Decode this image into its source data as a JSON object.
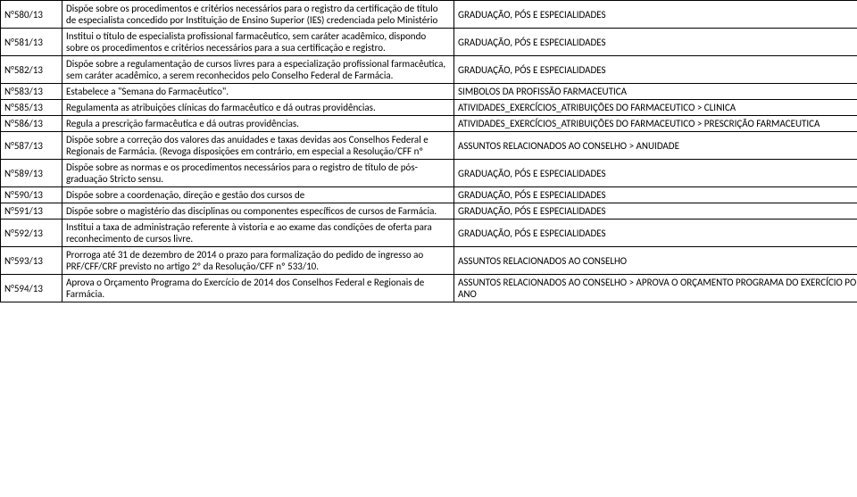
{
  "rows": [
    {
      "code": "N°580/13",
      "desc": "Dispõe sobre os procedimentos e critérios necessários para o registro da certificação de título de especialista concedido por Instituição de Ensino Superior (IES) credenciada pelo Ministério",
      "cat": "GRADUAÇÃO, PÓS E ESPECIALIDADES"
    },
    {
      "code": "N°581/13",
      "desc": "Institui o título de especialista profissional farmacêutico, sem caráter acadêmico, dispondo sobre os procedimentos e critérios necessários para a sua certificação e registro.",
      "cat": "GRADUAÇÃO, PÓS E ESPECIALIDADES"
    },
    {
      "code": "N°582/13",
      "desc": "Dispõe sobre a regulamentação de cursos livres para a especialização profissional farmacêutica, sem caráter acadêmico, a serem reconhecidos pelo Conselho Federal de Farmácia.",
      "cat": "GRADUAÇÃO, PÓS E ESPECIALIDADES"
    },
    {
      "code": "N°583/13",
      "desc": "Estabelece a \"Semana do Farmacêutico\".",
      "cat": "SIMBOLOS DA PROFISSÃO FARMACEUTICA"
    },
    {
      "code": "N°585/13",
      "desc": "Regulamenta as atribuições clínicas do farmacêutico e dá outras providências.",
      "cat": "ATIVIDADES_EXERCÍCIOS_ATRIBUIÇÕES DO FARMACEUTICO > CLINICA"
    },
    {
      "code": "N°586/13",
      "desc": "Regula a prescrição farmacêutica e dá outras providências.",
      "cat": "ATIVIDADES_EXERCÍCIOS_ATRIBUIÇÕES DO FARMACEUTICO > PRESCRIÇÃO FARMACEUTICA"
    },
    {
      "code": "N°587/13",
      "desc": "Dispõe sobre a correção dos valores das anuidades e taxas devidas aos Conselhos Federal e Regionais de Farmácia. (Revoga disposições em contrário, em especial a Resolução/CFF nº",
      "cat": "ASSUNTOS RELACIONADOS AO CONSELHO > ANUIDADE"
    },
    {
      "code": "N°589/13",
      "desc": "Dispõe sobre as normas e os procedimentos necessários para o registro de título de pós-graduação Stricto sensu.",
      "cat": "GRADUAÇÃO, PÓS E ESPECIALIDADES"
    },
    {
      "code": "N°590/13",
      "desc": "Dispõe sobre a coordenação, direção e gestão dos cursos de",
      "cat": "GRADUAÇÃO, PÓS E ESPECIALIDADES"
    },
    {
      "code": "N°591/13",
      "desc": "Dispõe sobre o magistério das disciplinas ou componentes específicos de cursos de Farmácia.",
      "cat": "GRADUAÇÃO, PÓS E ESPECIALIDADES"
    },
    {
      "code": "N°592/13",
      "desc": "Institui a taxa de administração referente à vistoria e ao exame das condições de oferta para reconhecimento de cursos livre.",
      "cat": "GRADUAÇÃO, PÓS E ESPECIALIDADES"
    },
    {
      "code": "N°593/13",
      "desc": " Prorroga até 31 de dezembro de 2014 o prazo para formalização do pedido de ingresso ao PRF/CFF/CRF previsto no artigo 2º da Resolução/CFF nº 533/10.",
      "cat": "ASSUNTOS RELACIONADOS AO CONSELHO"
    },
    {
      "code": "N°594/13",
      "desc": "Aprova o Orçamento Programa do Exercício de 2014 dos Conselhos Federal e Regionais de Farmácia.",
      "cat": "ASSUNTOS RELACIONADOS AO CONSELHO > APROVA O ORÇAMENTO PROGRAMA DO EXERCÍCIO POR ANO"
    }
  ]
}
